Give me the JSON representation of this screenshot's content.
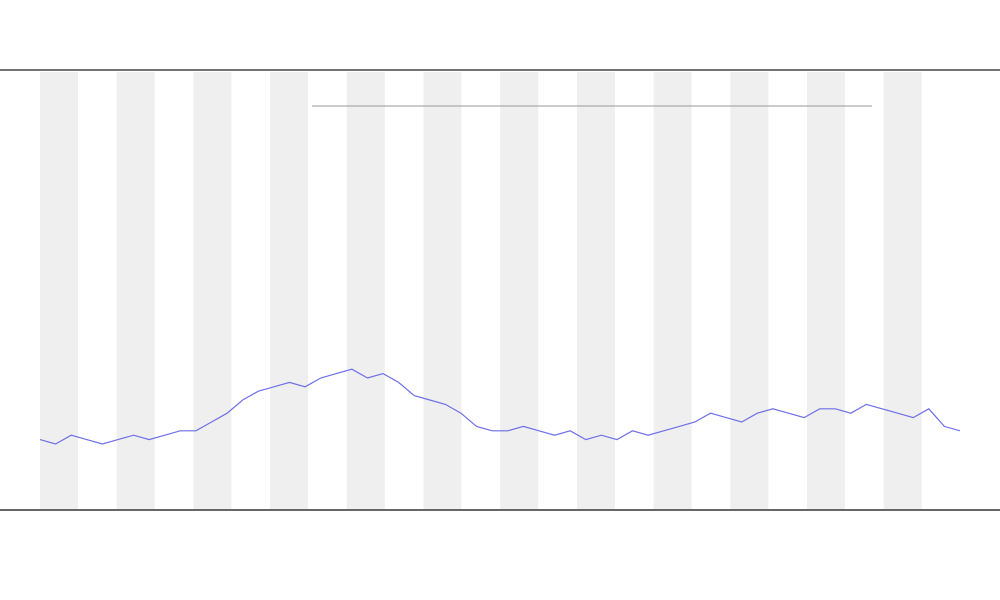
{
  "chart_data": {
    "type": "line",
    "categories": [
      null,
      null,
      null,
      null,
      null,
      null,
      null,
      null,
      null,
      null,
      null,
      null,
      null,
      null,
      null,
      null,
      null,
      null,
      null,
      null,
      null,
      null,
      null,
      null,
      null,
      null,
      null,
      null,
      null,
      null,
      null,
      null,
      null,
      null,
      null,
      null,
      null,
      null,
      null,
      null,
      null,
      null,
      null,
      null,
      null,
      null,
      null,
      null,
      null,
      null,
      null,
      null,
      null,
      null,
      null,
      null,
      null,
      null,
      null,
      null
    ],
    "series": [
      {
        "color": "#6f6fe8",
        "values": [
          16,
          15,
          17,
          16,
          15,
          16,
          17,
          16,
          17,
          18,
          18,
          20,
          22,
          25,
          27,
          28,
          29,
          28,
          30,
          31,
          32,
          30,
          31,
          29,
          26,
          25,
          24,
          22,
          19,
          18,
          18,
          19,
          18,
          17,
          18,
          16,
          17,
          16,
          18,
          17,
          18,
          19,
          20,
          22,
          21,
          20,
          22,
          23,
          22,
          21,
          23,
          23,
          22,
          24,
          23,
          22,
          21,
          23,
          19,
          18
        ]
      }
    ],
    "ylim": [
      0,
      100
    ]
  }
}
